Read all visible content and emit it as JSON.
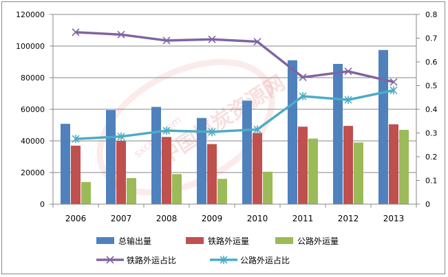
{
  "chart_data": {
    "type": "bar",
    "categories": [
      "2006",
      "2007",
      "2008",
      "2009",
      "2010",
      "2011",
      "2012",
      "2013"
    ],
    "series": [
      {
        "name": "总输出量",
        "kind": "bar",
        "axis": "left",
        "color": "#4f81bd",
        "values": [
          50800,
          59500,
          61500,
          54500,
          65500,
          91000,
          88700,
          97500
        ]
      },
      {
        "name": "铁路外运量",
        "kind": "bar",
        "axis": "left",
        "color": "#c0504d",
        "values": [
          37000,
          40000,
          42500,
          38000,
          45000,
          49000,
          49500,
          50500
        ]
      },
      {
        "name": "公路外运量",
        "kind": "bar",
        "axis": "left",
        "color": "#9bbb59",
        "values": [
          14000,
          16500,
          19000,
          16000,
          20500,
          41500,
          39000,
          47000
        ]
      },
      {
        "name": "铁路外运占比",
        "kind": "line",
        "axis": "right",
        "color": "#8064a2",
        "marker": "x",
        "values": [
          0.725,
          0.715,
          0.69,
          0.695,
          0.685,
          0.535,
          0.56,
          0.515
        ]
      },
      {
        "name": "公路外运占比",
        "kind": "line",
        "axis": "right",
        "color": "#4bacc6",
        "marker": "asterisk",
        "values": [
          0.275,
          0.285,
          0.31,
          0.305,
          0.315,
          0.455,
          0.44,
          0.48
        ]
      }
    ],
    "y_left": {
      "min": 0,
      "max": 120000,
      "step": 20000,
      "tick_labels": [
        "0",
        "20000",
        "40000",
        "60000",
        "80000",
        "100000",
        "120000"
      ]
    },
    "y_right": {
      "min": 0,
      "max": 0.8,
      "step": 0.1,
      "tick_labels": [
        "0",
        "0.1",
        "0.2",
        "0.3",
        "0.4",
        "0.5",
        "0.6",
        "0.7",
        "0.8"
      ]
    },
    "grid": true,
    "legend_position": "bottom",
    "title": "",
    "xlabel": "",
    "ylabel": "",
    "watermark": {
      "text": "中国煤炭资源网",
      "url": "sxcoal.com",
      "color": "#e06666"
    }
  }
}
